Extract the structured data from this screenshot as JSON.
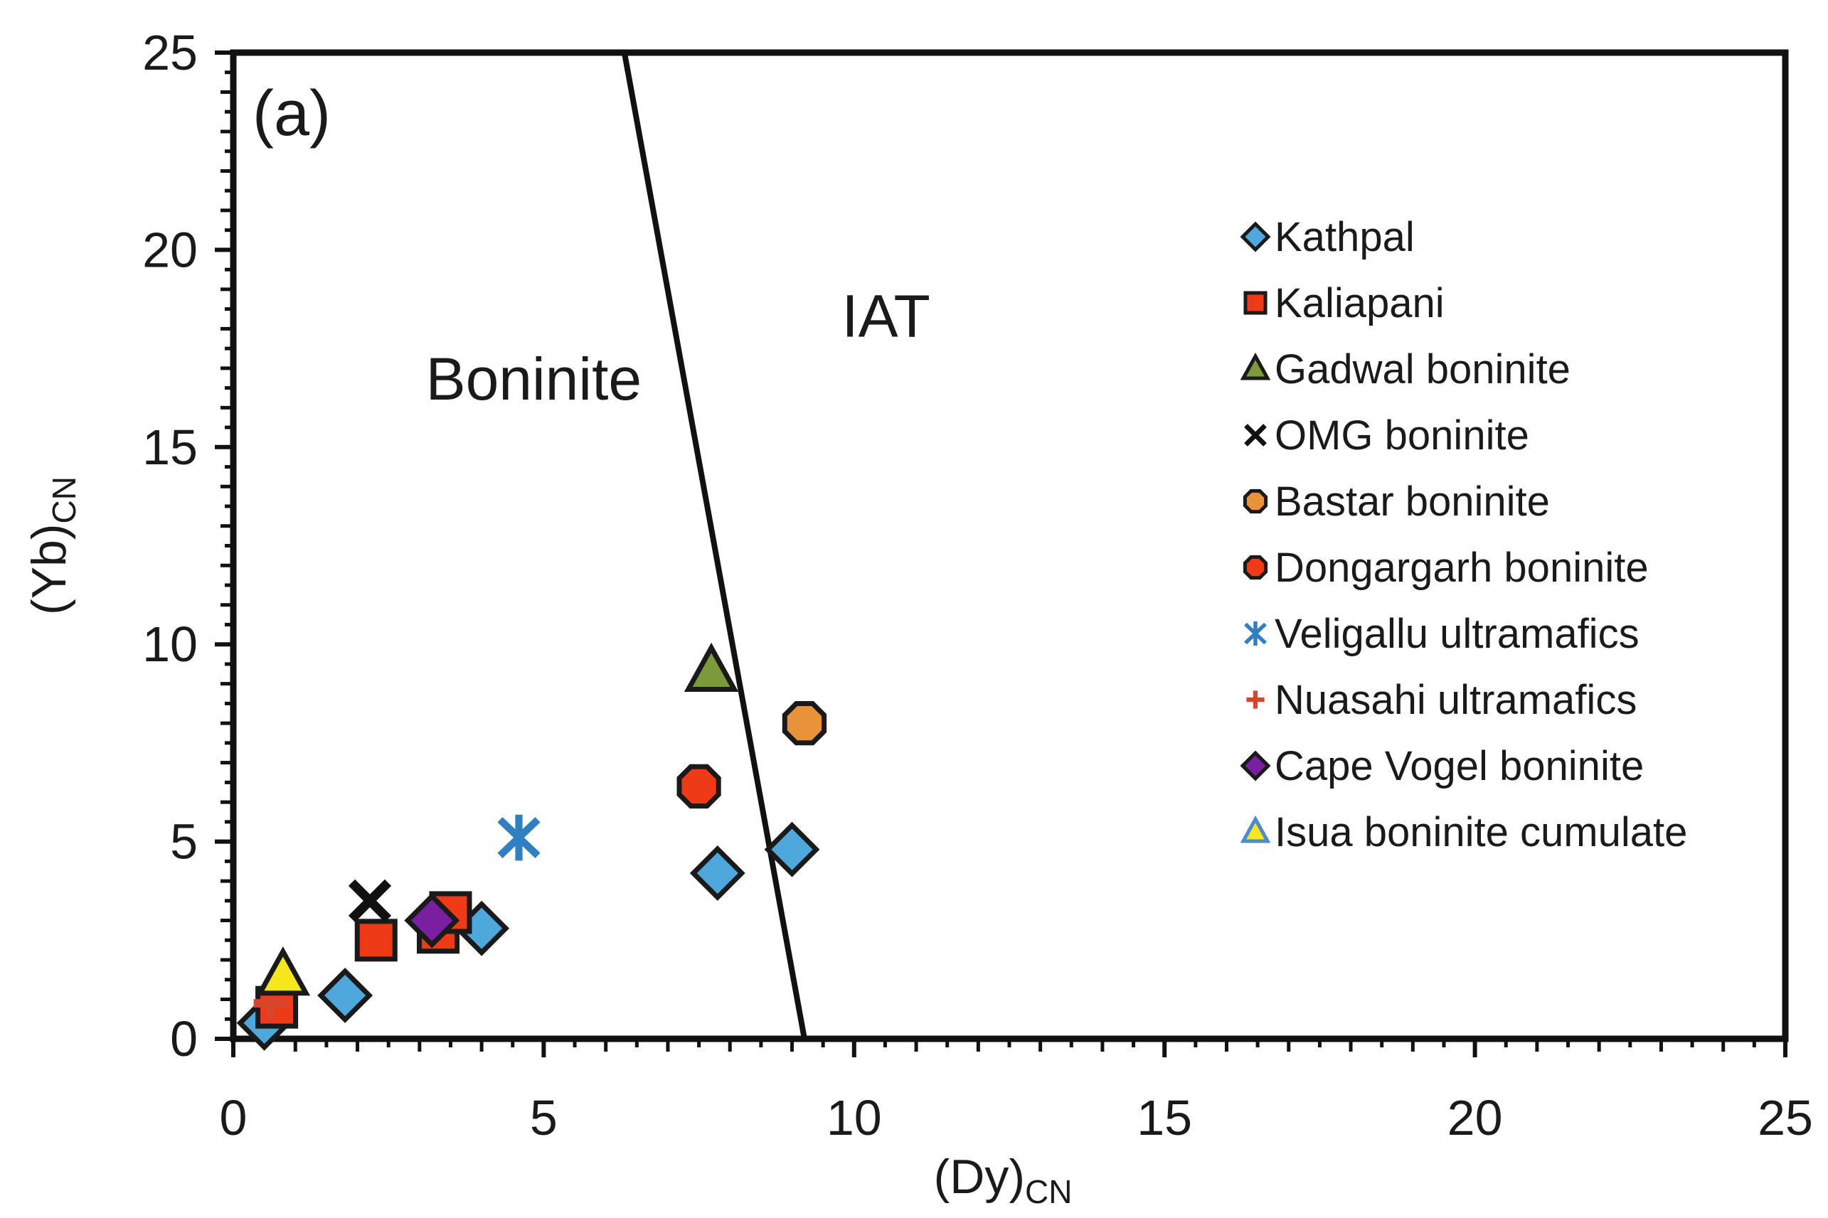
{
  "chart_data": {
    "type": "scatter",
    "panel_label": "(a)",
    "xlabel": {
      "main": "(Dy)",
      "sub": "CN"
    },
    "ylabel": {
      "main": "(Yb)",
      "sub": "CN"
    },
    "xlim": [
      0,
      25
    ],
    "ylim": [
      0,
      25
    ],
    "x_ticks": [
      0,
      5,
      10,
      15,
      20,
      25
    ],
    "y_ticks": [
      0,
      5,
      10,
      15,
      20,
      25
    ],
    "grid": false,
    "legend_position": "right",
    "boundary_line": {
      "points": [
        [
          6.3,
          25
        ],
        [
          9.2,
          0
        ]
      ],
      "color": "#111111"
    },
    "region_labels": [
      {
        "text": "Boninite",
        "x": 3.1,
        "y": 16.2
      },
      {
        "text": "IAT",
        "x": 9.8,
        "y": 17.8
      }
    ],
    "series": [
      {
        "name": "Kathpal",
        "marker": "diamond",
        "fill": "#4fa8dc",
        "stroke": "#1a1a1a",
        "points": [
          [
            0.5,
            0.4
          ],
          [
            1.8,
            1.1
          ],
          [
            4.0,
            2.8
          ],
          [
            7.8,
            4.2
          ],
          [
            9.0,
            4.8
          ]
        ]
      },
      {
        "name": "Kaliapani",
        "marker": "square",
        "fill": "#ee3a16",
        "stroke": "#1a1a1a",
        "points": [
          [
            0.7,
            0.8
          ],
          [
            2.3,
            2.5
          ],
          [
            3.3,
            2.7
          ],
          [
            3.5,
            3.2
          ]
        ]
      },
      {
        "name": "Gadwal boninite",
        "marker": "triangle",
        "fill": "#7a9a3c",
        "stroke": "#1a1a1a",
        "points": [
          [
            7.7,
            9.3
          ]
        ]
      },
      {
        "name": "OMG boninite",
        "marker": "x",
        "fill": "#111111",
        "stroke": "#111111",
        "points": [
          [
            2.2,
            3.5
          ]
        ]
      },
      {
        "name": "Bastar boninite",
        "marker": "octagon",
        "fill": "#e8923a",
        "stroke": "#1a1a1a",
        "points": [
          [
            9.2,
            8.0
          ]
        ]
      },
      {
        "name": "Dongargarh boninite",
        "marker": "octagon",
        "fill": "#ee3a16",
        "stroke": "#1a1a1a",
        "points": [
          [
            7.5,
            6.4
          ]
        ]
      },
      {
        "name": "Veligallu ultramafics",
        "marker": "asterisk",
        "fill": "#2f7fc1",
        "stroke": "#2f7fc1",
        "points": [
          [
            4.6,
            5.1
          ]
        ]
      },
      {
        "name": "Nuasahi ultramafics",
        "marker": "plus",
        "fill": "#d9442c",
        "stroke": "#d9442c",
        "points": [
          [
            0.6,
            0.9
          ]
        ]
      },
      {
        "name": "Cape Vogel boninite",
        "marker": "diamond",
        "fill": "#7a1fa2",
        "stroke": "#1a1a1a",
        "points": [
          [
            3.2,
            3.0
          ]
        ]
      },
      {
        "name": "Isua boninite cumulate",
        "marker": "triangle",
        "fill": "#f5e61e",
        "stroke": "#1a1a1a",
        "legend_stroke": "#4f8ad0",
        "points": [
          [
            0.8,
            1.6
          ]
        ]
      }
    ]
  }
}
